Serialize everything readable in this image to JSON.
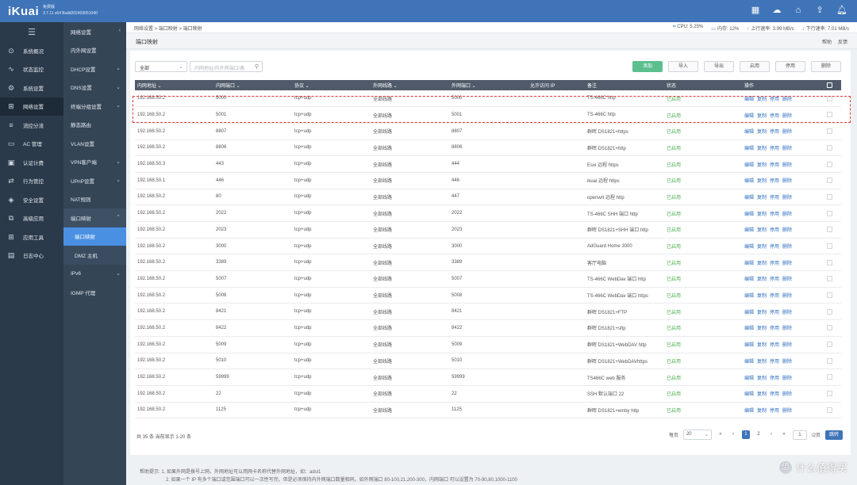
{
  "app": {
    "logo": "iKuai",
    "edition": "免费版",
    "version": "3.7.11 x64 Build202403051040"
  },
  "topbar_icons": [
    "grid-icon",
    "cloud-icon",
    "home-icon",
    "upload-icon",
    "bell-icon"
  ],
  "sidebar": {
    "collapse_icon": "☰",
    "items": [
      {
        "label": "系统概况",
        "icon": "⊙"
      },
      {
        "label": "状态监控",
        "icon": "∿"
      },
      {
        "label": "系统设置",
        "icon": "⚙"
      },
      {
        "label": "网络设置",
        "icon": "⊞",
        "active": true
      },
      {
        "label": "流控分流",
        "icon": "≡"
      },
      {
        "label": "AC 管理",
        "icon": "▭"
      },
      {
        "label": "认证计费",
        "icon": "▣"
      },
      {
        "label": "行为管控",
        "icon": "⇄"
      },
      {
        "label": "安全设置",
        "icon": "◈"
      },
      {
        "label": "高级应用",
        "icon": "⧉"
      },
      {
        "label": "应用工具",
        "icon": "⊞"
      },
      {
        "label": "日志中心",
        "icon": "▤"
      }
    ]
  },
  "submenu": {
    "header": "网络设置",
    "header_arrow": "‹",
    "items": [
      {
        "label": "内外网设置",
        "arrow": ""
      },
      {
        "label": "DHCP设置",
        "arrow": "⌄"
      },
      {
        "label": "DNS设置",
        "arrow": "⌄"
      },
      {
        "label": "终端分组设置",
        "arrow": "⌄"
      },
      {
        "label": "静态路由",
        "arrow": ""
      },
      {
        "label": "VLAN设置",
        "arrow": ""
      },
      {
        "label": "VPN客户端",
        "arrow": "⌄"
      },
      {
        "label": "UPnP设置",
        "arrow": "⌄"
      },
      {
        "label": "NAT规则",
        "arrow": ""
      },
      {
        "label": "端口映射",
        "arrow": "⌃",
        "open": true
      },
      {
        "label": "端口映射",
        "child": true,
        "selected": true
      },
      {
        "label": "DMZ 主机",
        "child": true
      },
      {
        "label": "IPv6",
        "arrow": "⌄"
      },
      {
        "label": "IGMP 代理",
        "arrow": ""
      }
    ]
  },
  "breadcrumb": "网络设置 > 端口映射 > 端口映射",
  "stats": {
    "cpu": "CPU: 5.25%",
    "mem": "内存: 12%",
    "up": "上行速率: 3.99 MB/s",
    "down": "下行速率: 7.01 MB/s"
  },
  "page": {
    "title": "端口映射",
    "help": "帮助",
    "feedback": "反馈"
  },
  "filter": {
    "select_value": "全部",
    "search_placeholder": "内网地址/内外网端口/备"
  },
  "toolbar": {
    "add": "添加",
    "import": "导入",
    "export": "导出",
    "enable": "启用",
    "disable": "停用",
    "delete": "删除"
  },
  "table": {
    "headers": [
      "内网地址 ⌄",
      "内网端口 ⌄",
      "协议 ⌄",
      "外网线路 ⌄",
      "外网端口 ⌄",
      "允许访问 IP",
      "备注",
      "状态",
      "操作"
    ],
    "op_labels": [
      "编辑",
      "复制",
      "停用",
      "删除"
    ],
    "rows": [
      [
        "192.168.50.2",
        "5000",
        "tcp+udp",
        "全部线路",
        "5000",
        "",
        "TS-466C http",
        "已启用"
      ],
      [
        "192.168.50.2",
        "5001",
        "tcp+udp",
        "全部线路",
        "5001",
        "",
        "TS-466C http",
        "已启用"
      ],
      [
        "192.168.50.2",
        "8807",
        "tcp+udp",
        "全部线路",
        "8807",
        "",
        "群晖 DS1821+https",
        "已启用"
      ],
      [
        "192.168.50.2",
        "8806",
        "tcp+udp",
        "全部线路",
        "8806",
        "",
        "群晖 DS1821+http",
        "已启用"
      ],
      [
        "192.168.50.3",
        "443",
        "tcp+udp",
        "全部线路",
        "444",
        "",
        "Esxi 远程 https",
        "已启用"
      ],
      [
        "192.168.50.1",
        "446",
        "tcp+udp",
        "全部线路",
        "446",
        "",
        "ikuai 远程 https",
        "已启用"
      ],
      [
        "192.168.50.2",
        "80",
        "tcp+udp",
        "全部线路",
        "447",
        "",
        "openwrt 远程 http",
        "已启用"
      ],
      [
        "192.168.50.2",
        "2022",
        "tcp+udp",
        "全部线路",
        "2022",
        "",
        "TS-466C SHH 端口 http",
        "已启用"
      ],
      [
        "192.168.50.2",
        "2023",
        "tcp+udp",
        "全部线路",
        "2023",
        "",
        "群晖 DS1821+SHH 端口 http",
        "已启用"
      ],
      [
        "192.168.50.2",
        "3000",
        "tcp+udp",
        "全部线路",
        "3000",
        "",
        "AdGuard Home 3000",
        "已启用"
      ],
      [
        "192.168.50.2",
        "3389",
        "tcp+udp",
        "全部线路",
        "3389",
        "",
        "客厅电脑",
        "已启用"
      ],
      [
        "192.168.50.2",
        "5007",
        "tcp+udp",
        "全部线路",
        "5007",
        "",
        "TS-466C WebDav 端口 http",
        "已启用"
      ],
      [
        "192.168.50.2",
        "5008",
        "tcp+udp",
        "全部线路",
        "5008",
        "",
        "TS-466C WebDav 端口 https",
        "已启用"
      ],
      [
        "192.168.50.2",
        "8421",
        "tcp+udp",
        "全部线路",
        "8421",
        "",
        "群晖 DS1821+FTP",
        "已启用"
      ],
      [
        "192.168.50.2",
        "8422",
        "tcp+udp",
        "全部线路",
        "8422",
        "",
        "群晖 DS1821+sftp",
        "已启用"
      ],
      [
        "192.168.50.2",
        "5009",
        "tcp+udp",
        "全部线路",
        "5009",
        "",
        "群晖 DS1821+WebDAV http",
        "已启用"
      ],
      [
        "192.168.50.2",
        "5010",
        "tcp+udp",
        "全部线路",
        "5010",
        "",
        "群晖 DS1821+WebDAVhttps",
        "已启用"
      ],
      [
        "192.168.50.2",
        "59999",
        "tcp+udp",
        "全部线路",
        "59999",
        "",
        "TS466C web 服务",
        "已启用"
      ],
      [
        "192.168.50.2",
        "22",
        "tcp+udp",
        "全部线路",
        "22",
        "",
        "SSH 默认端口 22",
        "已启用"
      ],
      [
        "192.168.50.2",
        "1125",
        "tcp+udp",
        "全部线路",
        "1125",
        "",
        "群晖 DS1821+emby http",
        "已启用"
      ]
    ]
  },
  "footer": {
    "summary": "共 35 条 当前显示 1-20 条",
    "per_page_label": "每页",
    "per_page": "20",
    "first": "«",
    "prev": "‹",
    "pages": [
      "1",
      "2"
    ],
    "next": "›",
    "last": "»",
    "page_input": "1",
    "page_total": "/2页",
    "go": "跳转"
  },
  "hint": {
    "line1": "帮助提示: 1. 如果外网是拨号上网，外网地址可以用网卡名称代替外网地址，如：adsl1",
    "line2": "2. 如果一个 IP 有多个端口或范围端口可以一次性写完，但是必须保持内外网端口数量相同。如外网端口 80-100,21,200-300，内网端口 可以设置为 70-90,80,1000-1100"
  },
  "watermark": {
    "icon": "值",
    "text": "什么值得买"
  }
}
